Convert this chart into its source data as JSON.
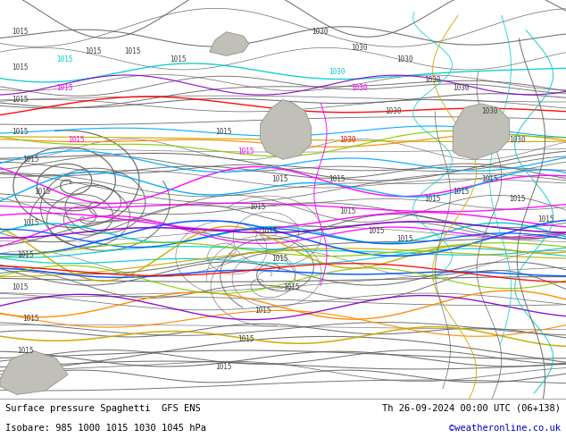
{
  "title_left": "Surface pressure Spaghetti  GFS ENS",
  "title_right": "Th 26-09-2024 00:00 UTC (06+138)",
  "subtitle": "Isobare: 985 1000 1015 1030 1045 hPa",
  "credit": "©weatheronline.co.uk",
  "bg_color": "#c8f0a0",
  "footer_bg": "#ffffff",
  "credit_color": "#0000cc",
  "figsize": [
    6.34,
    4.9
  ],
  "dpi": 100,
  "line_colors": [
    "#606060",
    "#606060",
    "#606060",
    "#606060",
    "#606060",
    "#606060",
    "#606060",
    "#606060",
    "#606060",
    "#606060",
    "#606060",
    "#606060",
    "#606060",
    "#606060",
    "#606060",
    "#606060",
    "#606060",
    "#606060",
    "#606060",
    "#606060",
    "#ff00ff",
    "#ff00ff",
    "#ff00ff",
    "#00cccc",
    "#00cccc",
    "#00cccc",
    "#0000ff",
    "#0000ff",
    "#9900cc",
    "#9900cc",
    "#ffcc00",
    "#ffcc00",
    "#ffcc00",
    "#ff6600",
    "#ff6600",
    "#00cc00",
    "#00cc00",
    "#ff0000",
    "#ff0000",
    "#00aaff",
    "#00aaff"
  ]
}
